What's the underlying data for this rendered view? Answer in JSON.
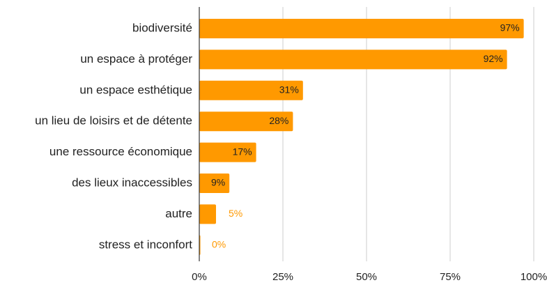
{
  "chart_data": {
    "type": "bar",
    "orientation": "horizontal",
    "categories": [
      "biodiversité",
      "un espace à protéger",
      "un espace esthétique",
      "un lieu de loisirs et de détente",
      "une ressource économique",
      "des lieux inaccessibles",
      "autre",
      "stress et inconfort"
    ],
    "values": [
      97,
      92,
      31,
      28,
      17,
      9,
      5,
      0
    ],
    "value_labels": [
      "97%",
      "92%",
      "31%",
      "28%",
      "17%",
      "9%",
      "5%",
      "0%"
    ],
    "color": "#ff9900",
    "xlim": [
      0,
      100
    ],
    "xticks": [
      {
        "value": 0,
        "label": "0%"
      },
      {
        "value": 25,
        "label": "25%"
      },
      {
        "value": 50,
        "label": "50%"
      },
      {
        "value": 75,
        "label": "75%"
      },
      {
        "value": 100,
        "label": "100%"
      }
    ],
    "grid": true
  }
}
